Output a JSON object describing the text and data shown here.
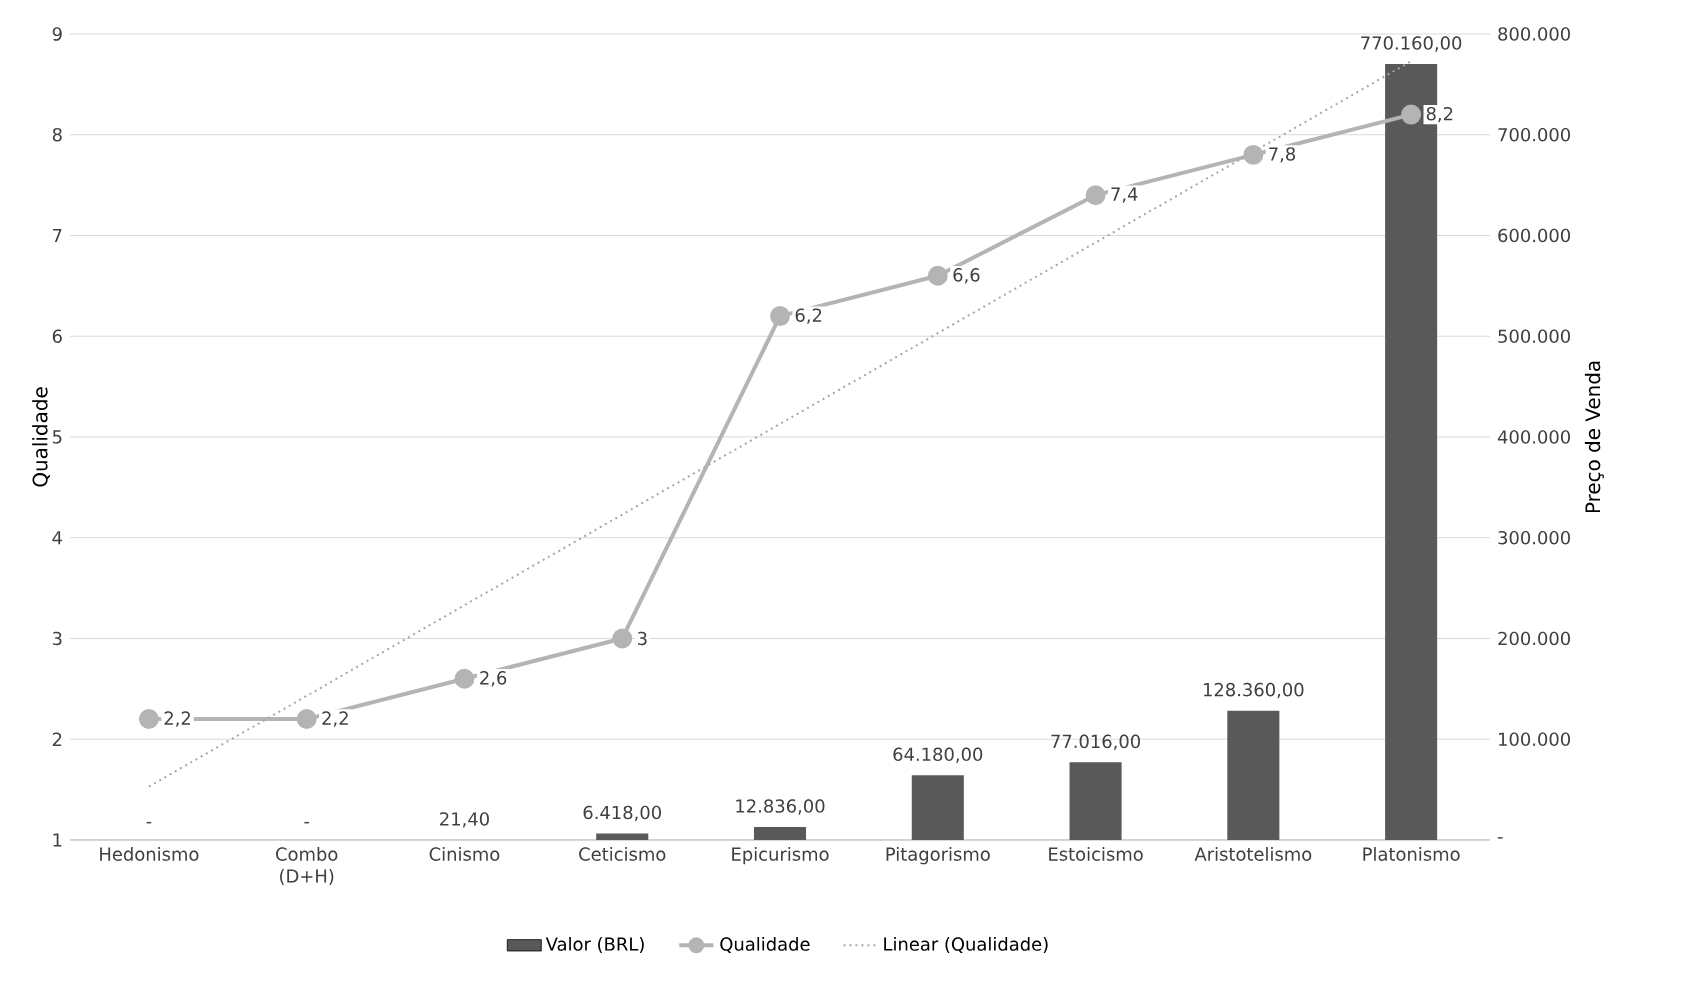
{
  "chart_data": {
    "type": "bar",
    "categories": [
      "Hedonismo",
      "Combo (D+H)",
      "Cinismo",
      "Ceticismo",
      "Epicurismo",
      "Pitagorismo",
      "Estoicismo",
      "Aristotelismo",
      "Platonismo"
    ],
    "ylabel": "Qualidade",
    "y2label": "Preço de Venda",
    "ylim": [
      1,
      9
    ],
    "yticks": [
      1,
      2,
      3,
      4,
      5,
      6,
      7,
      8,
      9
    ],
    "y2lim": [
      0,
      800000
    ],
    "y2ticks": [
      {
        "value": 0,
        "label": "-"
      },
      {
        "value": 100000,
        "label": "100.000"
      },
      {
        "value": 200000,
        "label": "200.000"
      },
      {
        "value": 300000,
        "label": "300.000"
      },
      {
        "value": 400000,
        "label": "400.000"
      },
      {
        "value": 500000,
        "label": "500.000"
      },
      {
        "value": 600000,
        "label": "600.000"
      },
      {
        "value": 700000,
        "label": "700.000"
      },
      {
        "value": 800000,
        "label": "800.000"
      }
    ],
    "grid": "y",
    "legend": "bottom",
    "series": [
      {
        "name": "Valor (BRL)",
        "axis": "y2",
        "color": "#595959",
        "values": [
          0,
          0,
          21.4,
          6418,
          12836,
          64180,
          77016,
          128360,
          770160
        ],
        "value_labels": [
          "-",
          "-",
          "21,40",
          "6.418,00",
          "12.836,00",
          "64.180,00",
          "77.016,00",
          "128.360,00",
          "770.160,00"
        ]
      },
      {
        "name": "Qualidade",
        "type": "line",
        "color": "#b4b4b4",
        "marker": "circle",
        "line_style": "solid",
        "values": [
          2.2,
          2.2,
          2.6,
          3,
          6.2,
          6.6,
          7.4,
          7.8,
          8.2
        ],
        "value_labels": [
          "2,2",
          "2,2",
          "2,6",
          "3",
          "6,2",
          "6,6",
          "7,4",
          "7,8",
          "8,2"
        ]
      },
      {
        "name": "Linear (Qualidade)",
        "type": "line",
        "color": "#a6a6a6",
        "marker": "none",
        "line_style": "dotted",
        "values": [
          1.53,
          2.43,
          3.33,
          4.23,
          5.13,
          6.03,
          6.93,
          7.83,
          8.73
        ]
      }
    ]
  }
}
